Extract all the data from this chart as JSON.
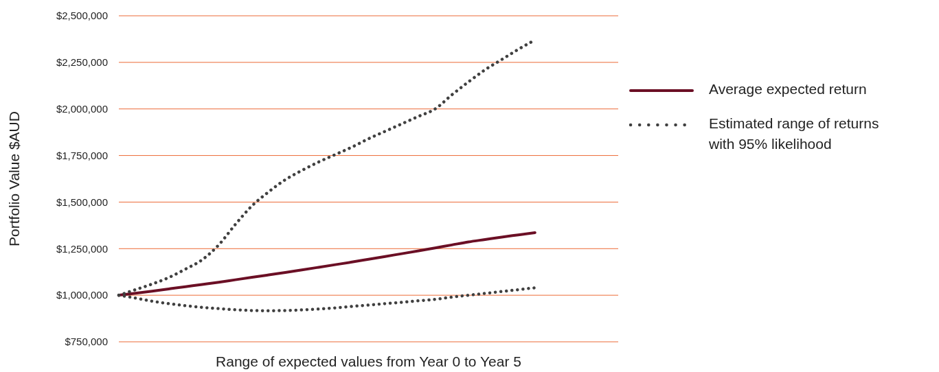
{
  "chart_data": {
    "type": "line",
    "xlabel": "Range of expected values from Year 0 to Year 5",
    "ylabel": "Portfolio Value $AUD",
    "categories": [
      null,
      null,
      null,
      null,
      null,
      null,
      null,
      null,
      null,
      null,
      null,
      null,
      null,
      null,
      null,
      null,
      null,
      null,
      null,
      null,
      null,
      null,
      null,
      null,
      null,
      null,
      null,
      null,
      null,
      null,
      null
    ],
    "ylim": [
      750000,
      2500000
    ],
    "yticks": [
      {
        "value": 750000,
        "label": "$750,000"
      },
      {
        "value": 1000000,
        "label": "$1,000,000"
      },
      {
        "value": 1250000,
        "label": "$1,250,000"
      },
      {
        "value": 1500000,
        "label": "$1,500,000"
      },
      {
        "value": 1750000,
        "label": "$1,750,000"
      },
      {
        "value": 2000000,
        "label": "$2,000,000"
      },
      {
        "value": 2250000,
        "label": "$2,250,000"
      },
      {
        "value": 2500000,
        "label": "$2,500,000"
      }
    ],
    "grid": "y",
    "legend": "right",
    "marker": "none",
    "series": [
      {
        "name": "Average expected return",
        "color": "#6b0f25",
        "line_style": "solid",
        "values": [
          1000000,
          1011000,
          1022000,
          1034000,
          1046000,
          1058000,
          1070000,
          1083000,
          1096000,
          1109000,
          1122000,
          1136000,
          1150000,
          1164000,
          1178000,
          1193000,
          1208000,
          1223000,
          1238000,
          1254000,
          1270000,
          1286000,
          1299000,
          1312000,
          1324000,
          1336000,
          null,
          null,
          null,
          null,
          null
        ]
      },
      {
        "name": "Estimated range of returns with 95% likelihood",
        "color": "#404040",
        "line_style": "dotted",
        "values": [
          1000000,
          1030000,
          1060000,
          1095000,
          1140000,
          1190000,
          1270000,
          1380000,
          1480000,
          1555000,
          1620000,
          1670000,
          1715000,
          1755000,
          1795000,
          1840000,
          1880000,
          1920000,
          1960000,
          2000000,
          2075000,
          2145000,
          2210000,
          2265000,
          2320000,
          2370000,
          null,
          null,
          null,
          null,
          null
        ]
      },
      {
        "color": "#404040",
        "line_style": "dotted",
        "values": [
          1000000,
          985000,
          968000,
          955000,
          944000,
          935000,
          928000,
          922000,
          918000,
          917000,
          918000,
          921000,
          926000,
          932000,
          940000,
          947000,
          955000,
          962000,
          970000,
          978000,
          990000,
          1000000,
          1010000,
          1020000,
          1030000,
          1040000,
          null,
          null,
          null,
          null,
          null
        ]
      }
    ]
  }
}
